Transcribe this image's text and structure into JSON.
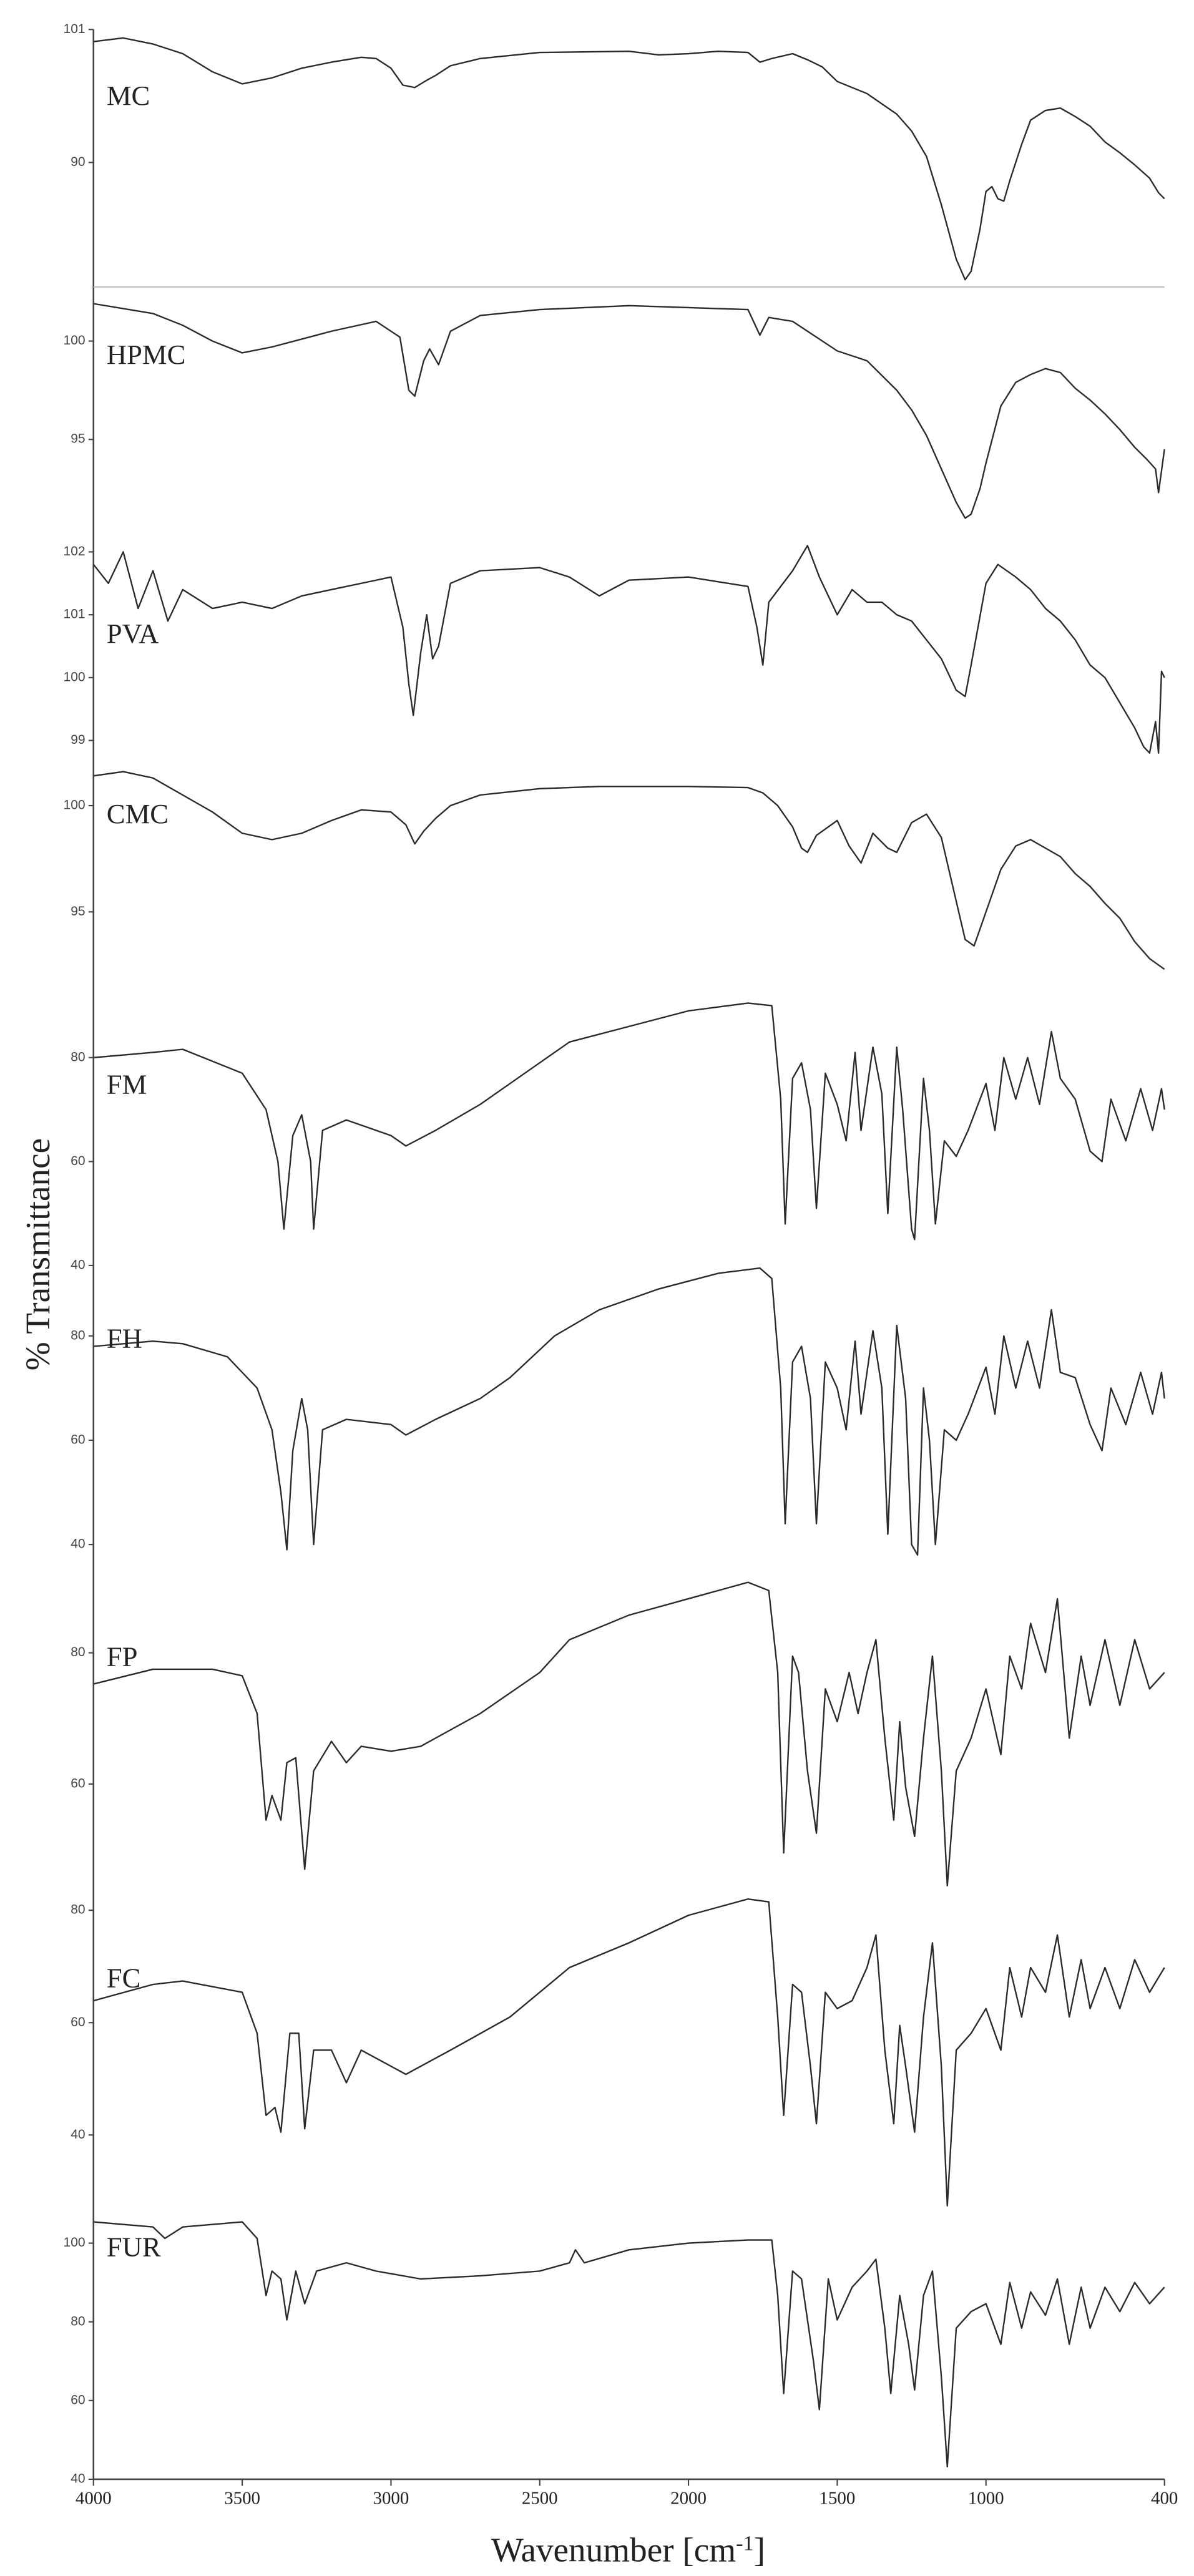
{
  "ylabel": "% Transmittance",
  "xlabel": [
    "Wavenumber [cm",
    "-1",
    "]"
  ],
  "chart_data": [
    {
      "type": "line",
      "label": "MC",
      "color": "#2a2a2a",
      "ylim": [
        79.7,
        101
      ],
      "yticks": [
        101,
        90
      ],
      "x": [
        4000,
        3900,
        3800,
        3700,
        3600,
        3500,
        3400,
        3300,
        3200,
        3100,
        3050,
        3000,
        2960,
        2920,
        2880,
        2850,
        2800,
        2700,
        2500,
        2200,
        2100,
        2000,
        1900,
        1800,
        1760,
        1720,
        1650,
        1600,
        1550,
        1500,
        1400,
        1300,
        1250,
        1200,
        1150,
        1100,
        1070,
        1050,
        1020,
        1000,
        980,
        960,
        940,
        920,
        880,
        850,
        800,
        750,
        700,
        650,
        600,
        550,
        500,
        450,
        420,
        400
      ],
      "values": [
        100.0,
        100.3,
        99.8,
        99.0,
        97.5,
        96.5,
        97.0,
        97.8,
        98.3,
        98.7,
        98.6,
        97.8,
        96.4,
        96.2,
        96.8,
        97.2,
        98.0,
        98.6,
        99.1,
        99.2,
        98.9,
        99.0,
        99.2,
        99.1,
        98.3,
        98.6,
        99.0,
        98.5,
        97.9,
        96.7,
        95.7,
        94.0,
        92.6,
        90.5,
        86.5,
        82.0,
        80.3,
        81.0,
        84.5,
        87.6,
        88.0,
        87.0,
        86.8,
        88.5,
        91.5,
        93.5,
        94.3,
        94.5,
        93.8,
        93.0,
        91.7,
        90.8,
        89.8,
        88.7,
        87.5,
        87.0
      ]
    },
    {
      "type": "line",
      "label": "HPMC",
      "color": "#2a2a2a",
      "ylim": [
        90.5,
        102.5
      ],
      "yticks": [
        100,
        95
      ],
      "x": [
        4000,
        3800,
        3700,
        3600,
        3500,
        3400,
        3200,
        3050,
        2970,
        2940,
        2920,
        2890,
        2870,
        2840,
        2800,
        2700,
        2500,
        2200,
        2000,
        1800,
        1760,
        1730,
        1650,
        1600,
        1500,
        1400,
        1300,
        1250,
        1200,
        1150,
        1100,
        1070,
        1050,
        1020,
        1000,
        950,
        900,
        850,
        800,
        750,
        700,
        650,
        600,
        550,
        500,
        460,
        430,
        420,
        400
      ],
      "values": [
        101.9,
        101.4,
        100.8,
        100.0,
        99.4,
        99.7,
        100.5,
        101.0,
        100.2,
        97.5,
        97.2,
        99.0,
        99.6,
        98.8,
        100.5,
        101.3,
        101.6,
        101.8,
        101.7,
        101.6,
        100.3,
        101.2,
        101.0,
        100.5,
        99.5,
        99.0,
        97.5,
        96.5,
        95.2,
        93.5,
        91.8,
        91.0,
        91.2,
        92.5,
        93.8,
        96.7,
        97.9,
        98.3,
        98.6,
        98.4,
        97.6,
        97.0,
        96.3,
        95.5,
        94.6,
        94.0,
        93.5,
        92.3,
        94.5
      ]
    },
    {
      "type": "line",
      "label": "PVA",
      "color": "#2a2a2a",
      "ylim": [
        98.65,
        102.25
      ],
      "yticks": [
        102,
        101,
        100,
        99
      ],
      "x": [
        4000,
        3950,
        3900,
        3850,
        3800,
        3750,
        3700,
        3600,
        3500,
        3400,
        3300,
        3200,
        3050,
        3000,
        2960,
        2940,
        2925,
        2900,
        2880,
        2860,
        2840,
        2800,
        2700,
        2500,
        2400,
        2300,
        2200,
        2000,
        1800,
        1770,
        1750,
        1730,
        1650,
        1600,
        1560,
        1500,
        1450,
        1400,
        1350,
        1300,
        1250,
        1200,
        1150,
        1100,
        1070,
        1050,
        1000,
        960,
        900,
        850,
        800,
        750,
        700,
        650,
        600,
        550,
        500,
        470,
        450,
        430,
        420,
        410,
        400
      ],
      "values": [
        101.8,
        101.5,
        102.0,
        101.1,
        101.7,
        100.9,
        101.4,
        101.1,
        101.2,
        101.1,
        101.3,
        101.4,
        101.55,
        101.6,
        100.8,
        99.9,
        99.4,
        100.4,
        101.0,
        100.3,
        100.5,
        101.5,
        101.7,
        101.75,
        101.6,
        101.3,
        101.55,
        101.6,
        101.45,
        100.8,
        100.2,
        101.2,
        101.7,
        102.1,
        101.6,
        101.0,
        101.4,
        101.2,
        101.2,
        101.0,
        100.9,
        100.6,
        100.3,
        99.8,
        99.7,
        100.2,
        101.5,
        101.8,
        101.6,
        101.4,
        101.1,
        100.9,
        100.6,
        100.2,
        100.0,
        99.6,
        99.2,
        98.9,
        98.8,
        99.3,
        98.8,
        100.1,
        100.0
      ]
    },
    {
      "type": "line",
      "label": "CMC",
      "color": "#2a2a2a",
      "ylim": [
        92,
        101.8
      ],
      "yticks": [
        100,
        95
      ],
      "x": [
        4000,
        3900,
        3800,
        3700,
        3600,
        3500,
        3400,
        3300,
        3200,
        3100,
        3000,
        2950,
        2920,
        2890,
        2850,
        2800,
        2700,
        2500,
        2300,
        2000,
        1800,
        1750,
        1700,
        1650,
        1620,
        1600,
        1570,
        1500,
        1460,
        1420,
        1380,
        1330,
        1300,
        1250,
        1200,
        1150,
        1100,
        1070,
        1040,
        1000,
        950,
        900,
        850,
        800,
        750,
        700,
        650,
        600,
        550,
        500,
        450,
        420,
        400
      ],
      "values": [
        101.4,
        101.6,
        101.3,
        100.5,
        99.7,
        98.7,
        98.4,
        98.7,
        99.3,
        99.8,
        99.7,
        99.1,
        98.2,
        98.8,
        99.4,
        100.0,
        100.5,
        100.8,
        100.9,
        100.9,
        100.85,
        100.6,
        100.0,
        99.0,
        98.0,
        97.8,
        98.6,
        99.3,
        98.1,
        97.3,
        98.7,
        98.0,
        97.8,
        99.2,
        99.6,
        98.5,
        95.5,
        93.7,
        93.4,
        95.0,
        97.0,
        98.1,
        98.4,
        98.0,
        97.6,
        96.8,
        96.2,
        95.4,
        94.7,
        93.6,
        92.8,
        92.5,
        92.3
      ]
    },
    {
      "type": "line",
      "label": "FM",
      "color": "#2a2a2a",
      "ylim": [
        37.4,
        94.2
      ],
      "yticks": [
        80,
        60,
        40
      ],
      "x": [
        4000,
        3800,
        3700,
        3500,
        3420,
        3380,
        3360,
        3330,
        3300,
        3270,
        3260,
        3230,
        3150,
        3000,
        2950,
        2850,
        2700,
        2600,
        2400,
        2200,
        2000,
        1800,
        1720,
        1690,
        1675,
        1650,
        1620,
        1590,
        1570,
        1540,
        1500,
        1470,
        1440,
        1420,
        1380,
        1350,
        1330,
        1300,
        1280,
        1250,
        1240,
        1210,
        1190,
        1170,
        1140,
        1100,
        1060,
        1000,
        970,
        940,
        900,
        860,
        820,
        780,
        750,
        700,
        650,
        610,
        580,
        530,
        480,
        440,
        410,
        400
      ],
      "values": [
        80,
        81,
        81.6,
        77,
        70,
        60,
        47,
        65,
        69,
        60,
        47,
        66,
        68,
        65,
        63,
        66,
        71,
        75,
        83,
        86,
        89,
        90.5,
        90,
        72,
        48,
        76,
        79,
        70,
        51,
        77,
        71,
        64,
        81,
        66,
        82,
        73,
        50,
        82,
        70,
        47,
        45,
        76,
        66,
        48,
        64,
        61,
        66,
        75,
        66,
        80,
        72,
        80,
        71,
        85,
        76,
        72,
        62,
        60,
        72,
        64,
        74,
        66,
        74,
        70
      ]
    },
    {
      "type": "line",
      "label": "FH",
      "color": "#2a2a2a",
      "ylim": [
        35.9,
        95
      ],
      "yticks": [
        80,
        60,
        40
      ],
      "x": [
        4000,
        3800,
        3700,
        3550,
        3450,
        3400,
        3370,
        3350,
        3330,
        3300,
        3280,
        3260,
        3230,
        3150,
        3000,
        2950,
        2850,
        2700,
        2600,
        2450,
        2300,
        2100,
        1900,
        1760,
        1720,
        1690,
        1675,
        1650,
        1620,
        1590,
        1570,
        1540,
        1500,
        1470,
        1440,
        1420,
        1380,
        1350,
        1330,
        1300,
        1270,
        1250,
        1230,
        1210,
        1190,
        1170,
        1140,
        1100,
        1060,
        1000,
        970,
        940,
        900,
        860,
        820,
        780,
        750,
        700,
        650,
        610,
        580,
        530,
        480,
        440,
        410,
        400
      ],
      "values": [
        78,
        79,
        78.5,
        76,
        70,
        62,
        50,
        39,
        58,
        68,
        62,
        40,
        62,
        64,
        63,
        61,
        64,
        68,
        72,
        80,
        85,
        89,
        92,
        93,
        91,
        70,
        44,
        75,
        78,
        68,
        44,
        75,
        70,
        62,
        79,
        65,
        81,
        70,
        42,
        82,
        68,
        40,
        38,
        70,
        60,
        40,
        62,
        60,
        65,
        74,
        65,
        80,
        70,
        79,
        70,
        85,
        73,
        72,
        63,
        58,
        70,
        63,
        73,
        65,
        73,
        68
      ]
    },
    {
      "type": "line",
      "label": "FP",
      "color": "#2a2a2a",
      "ylim": [
        44.5,
        92
      ],
      "yticks": [
        80,
        60
      ],
      "x": [
        4000,
        3800,
        3600,
        3500,
        3450,
        3420,
        3400,
        3370,
        3350,
        3320,
        3290,
        3260,
        3200,
        3150,
        3100,
        3000,
        2900,
        2700,
        2500,
        2400,
        2200,
        2000,
        1800,
        1730,
        1700,
        1680,
        1650,
        1630,
        1600,
        1570,
        1540,
        1500,
        1460,
        1430,
        1400,
        1370,
        1340,
        1310,
        1290,
        1270,
        1240,
        1210,
        1180,
        1150,
        1130,
        1100,
        1050,
        1000,
        950,
        920,
        880,
        850,
        800,
        760,
        720,
        680,
        650,
        600,
        550,
        500,
        450,
        400
      ],
      "values": [
        75.25,
        77.5,
        77.5,
        76.5,
        70.75,
        54.5,
        58.25,
        54.5,
        63.25,
        64,
        47,
        62,
        66.5,
        63.25,
        65.75,
        65,
        65.75,
        70.75,
        77,
        82,
        85.75,
        88.25,
        90.75,
        89.5,
        77,
        49.5,
        79.5,
        77,
        62,
        52.5,
        74.5,
        69.5,
        77,
        70.75,
        77,
        82,
        67,
        54.5,
        69.5,
        59.5,
        52,
        67,
        79.5,
        62,
        44.5,
        62,
        67,
        74.5,
        64.5,
        79.5,
        74.5,
        84.5,
        77,
        88.25,
        67,
        79.5,
        72,
        82,
        72,
        82,
        74.5,
        77
      ]
    },
    {
      "type": "line",
      "label": "FC",
      "color": "#2a2a2a",
      "ylim": [
        26,
        83.5
      ],
      "yticks": [
        80,
        60,
        40
      ],
      "x": [
        4000,
        3800,
        3700,
        3500,
        3450,
        3420,
        3390,
        3370,
        3340,
        3310,
        3290,
        3260,
        3200,
        3150,
        3100,
        2950,
        2800,
        2600,
        2400,
        2200,
        2000,
        1800,
        1730,
        1700,
        1680,
        1650,
        1620,
        1590,
        1570,
        1540,
        1500,
        1450,
        1400,
        1370,
        1340,
        1310,
        1290,
        1270,
        1240,
        1210,
        1180,
        1150,
        1130,
        1100,
        1050,
        1000,
        950,
        920,
        880,
        850,
        800,
        760,
        720,
        680,
        650,
        600,
        550,
        500,
        450,
        400
      ],
      "values": [
        63.9,
        66.8,
        67.4,
        65.4,
        58.1,
        43.5,
        44.9,
        40.5,
        58.1,
        58.1,
        41.1,
        55.1,
        55.1,
        49.3,
        55.1,
        50.8,
        55.1,
        61,
        69.8,
        74.2,
        79.1,
        82,
        81.5,
        61,
        43.5,
        66.8,
        65.4,
        52.2,
        42,
        65.4,
        62.5,
        63.9,
        69.8,
        75.6,
        55.1,
        42,
        59.5,
        52.2,
        40.5,
        61,
        74.2,
        52.2,
        27.4,
        55.1,
        58.1,
        62.5,
        55.1,
        69.8,
        61,
        69.8,
        65.4,
        75.6,
        61,
        71.2,
        62.5,
        69.8,
        62.5,
        71.2,
        65.4,
        69.8
      ]
    },
    {
      "type": "line",
      "label": "FUR",
      "color": "#2a2a2a",
      "ylim": [
        40,
        107.5
      ],
      "yticks": [
        100,
        80,
        60,
        40
      ],
      "xlim": [
        4000,
        400
      ],
      "xticks": [
        4000,
        3500,
        3000,
        2500,
        2000,
        1500,
        1000,
        400
      ],
      "x": [
        4000,
        3800,
        3760,
        3700,
        3500,
        3450,
        3420,
        3400,
        3370,
        3350,
        3320,
        3290,
        3250,
        3150,
        3050,
        2900,
        2700,
        2500,
        2400,
        2380,
        2350,
        2200,
        2000,
        1800,
        1720,
        1700,
        1680,
        1650,
        1620,
        1580,
        1560,
        1530,
        1500,
        1450,
        1400,
        1370,
        1340,
        1320,
        1290,
        1260,
        1240,
        1210,
        1180,
        1150,
        1130,
        1100,
        1050,
        1000,
        950,
        920,
        880,
        850,
        800,
        760,
        720,
        680,
        650,
        600,
        550,
        500,
        450,
        400
      ],
      "values": [
        105.4,
        104.1,
        101.2,
        104.1,
        105.4,
        101.2,
        86.7,
        92.9,
        90.9,
        80.5,
        92.9,
        84.6,
        92.9,
        95,
        92.9,
        90.9,
        91.7,
        92.9,
        95,
        98.3,
        95,
        98.3,
        100,
        100.8,
        100.8,
        86.7,
        61.8,
        92.9,
        90.9,
        70.1,
        57.7,
        90.9,
        80.5,
        88.8,
        92.9,
        95.9,
        78.4,
        61.8,
        86.7,
        74.3,
        62.7,
        86.7,
        92.9,
        66,
        43.2,
        78.4,
        82.6,
        84.6,
        74.3,
        90,
        78.4,
        87.6,
        81.7,
        90.9,
        74.3,
        88.8,
        78.4,
        88.8,
        82.6,
        90,
        84.6,
        88.8
      ]
    }
  ]
}
